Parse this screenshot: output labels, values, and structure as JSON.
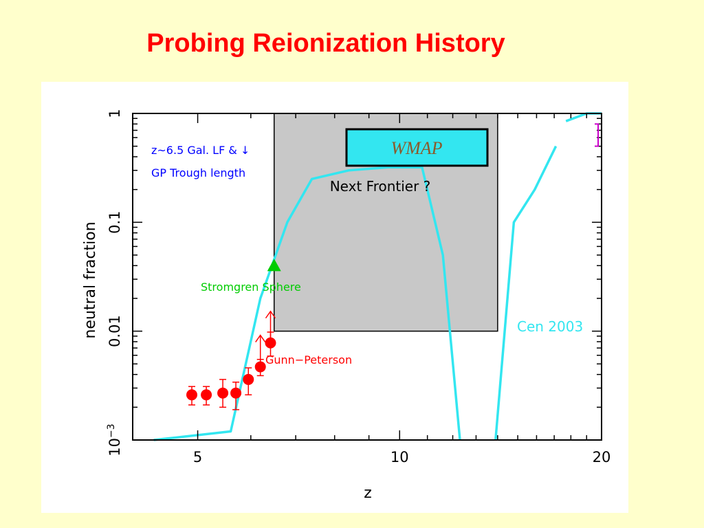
{
  "slide": {
    "title": "Probing Reionization History"
  },
  "chart_data": {
    "type": "scatter",
    "xlabel": "z",
    "ylabel": "neutral fraction",
    "xscale": "log",
    "yscale": "log",
    "xlim": [
      4,
      20
    ],
    "ylim": [
      0.001,
      1
    ],
    "x_ticks": [
      {
        "value": 5,
        "label": "5"
      },
      {
        "value": 10,
        "label": "10"
      },
      {
        "value": 20,
        "label": "20"
      }
    ],
    "y_ticks": [
      {
        "value": 1,
        "label": "1"
      },
      {
        "value": 0.1,
        "label": "0.1"
      },
      {
        "value": 0.01,
        "label": "0.01"
      },
      {
        "value": 0.001,
        "label": "10",
        "sup": "−3"
      }
    ],
    "colors": {
      "gp": "#ff0000",
      "model": "#33e6f0",
      "stromgren": "#00cc00",
      "gal": "#0000ff",
      "wmap_fill": "#33e6f0",
      "region_fill": "#c8c8c8",
      "wmap_bracket": "#cc00cc"
    },
    "gunn_peterson": {
      "label": "Gunn−Peterson",
      "points": [
        {
          "z": 4.9,
          "y": 0.0026,
          "lo": 0.0021,
          "hi": 0.0031
        },
        {
          "z": 5.15,
          "y": 0.0026,
          "lo": 0.0021,
          "hi": 0.0031
        },
        {
          "z": 5.45,
          "y": 0.0027,
          "lo": 0.002,
          "hi": 0.0036
        },
        {
          "z": 5.7,
          "y": 0.0027,
          "lo": 0.0019,
          "hi": 0.0034
        },
        {
          "z": 5.95,
          "y": 0.0036,
          "lo": 0.0026,
          "hi": 0.0046
        },
        {
          "z": 6.2,
          "y": 0.0047,
          "lo": 0.0039,
          "hi": 0.0055
        },
        {
          "z": 6.42,
          "y": 0.0078,
          "lo": 0.0059,
          "hi": 0.0098
        }
      ],
      "lower_limits": [
        {
          "z": 6.2,
          "y": 0.0047
        },
        {
          "z": 6.42,
          "y": 0.0078
        }
      ]
    },
    "stromgren": {
      "label": "Stromgren Sphere",
      "z": 6.5,
      "y": 0.04
    },
    "galaxy_lf": {
      "line1": "z~6.5 Gal. LF & ↓",
      "line2": "GP Trough length"
    },
    "next_frontier": {
      "label": "Next Frontier ?",
      "z_range": [
        6.5,
        14
      ],
      "y_range": [
        0.01,
        1
      ]
    },
    "wmap": {
      "label": "WMAP",
      "bracket_z": 20,
      "bracket_y": [
        0.5,
        0.8
      ]
    },
    "model": {
      "label": "Cen 2003",
      "segments": [
        [
          {
            "z": 4.3,
            "y": 0.001
          },
          {
            "z": 5.6,
            "y": 0.0012
          },
          {
            "z": 6.2,
            "y": 0.02
          },
          {
            "z": 6.8,
            "y": 0.1
          },
          {
            "z": 7.4,
            "y": 0.25
          },
          {
            "z": 8.4,
            "y": 0.3
          },
          {
            "z": 9.6,
            "y": 0.32
          },
          {
            "z": 10.8,
            "y": 0.32
          },
          {
            "z": 11.6,
            "y": 0.05
          },
          {
            "z": 12.3,
            "y": 0.001
          }
        ],
        [
          {
            "z": 13.9,
            "y": 0.001
          },
          {
            "z": 14.8,
            "y": 0.1
          },
          {
            "z": 15.9,
            "y": 0.2
          },
          {
            "z": 17.1,
            "y": 0.5
          }
        ],
        [
          {
            "z": 17.7,
            "y": 0.85
          },
          {
            "z": 19.0,
            "y": 1.0
          },
          {
            "z": 20,
            "y": 1.0
          }
        ]
      ]
    }
  }
}
